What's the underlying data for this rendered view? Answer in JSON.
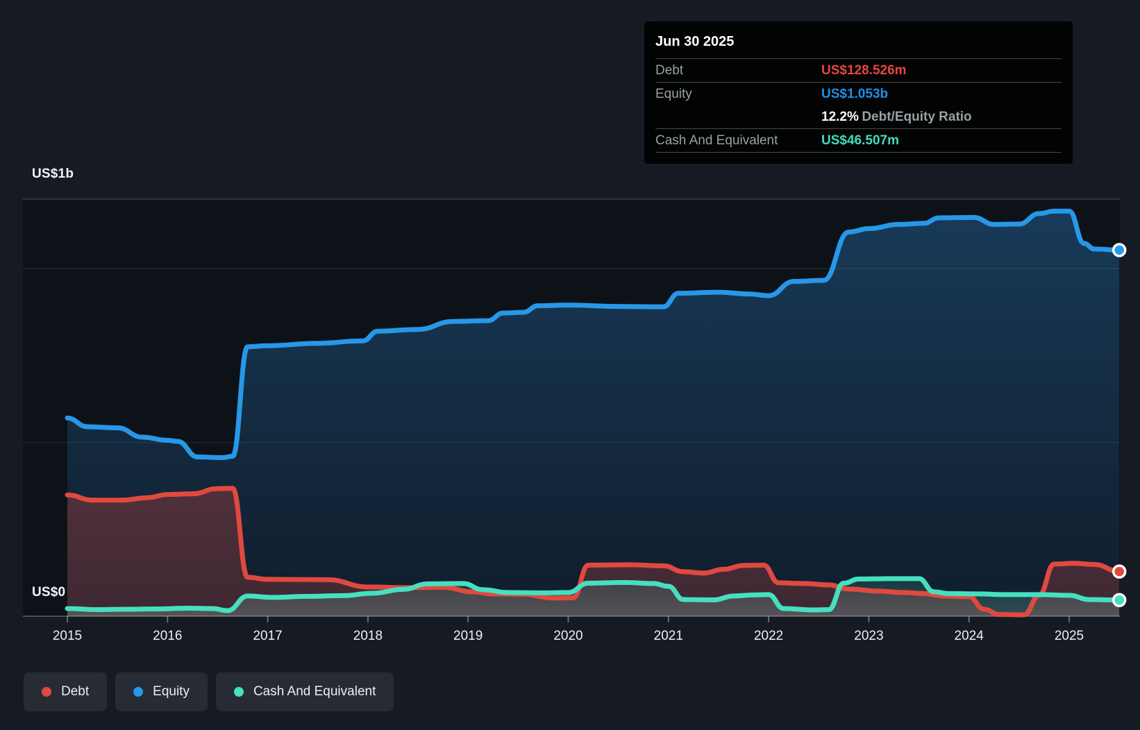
{
  "y_axis": {
    "top_label": "US$1b",
    "zero_label": "US$0"
  },
  "x_axis": {
    "ticks": [
      "2015",
      "2016",
      "2017",
      "2018",
      "2019",
      "2020",
      "2021",
      "2022",
      "2023",
      "2024",
      "2025"
    ]
  },
  "tooltip": {
    "date": "Jun 30 2025",
    "debt_label": "Debt",
    "debt_value": "US$128.526m",
    "equity_label": "Equity",
    "equity_value": "US$1.053b",
    "ratio_value": "12.2%",
    "ratio_label": "Debt/Equity Ratio",
    "cash_label": "Cash And Equivalent",
    "cash_value": "US$46.507m"
  },
  "legend": {
    "debt": "Debt",
    "equity": "Equity",
    "cash": "Cash And Equivalent"
  },
  "colors": {
    "debt": "#e0493f",
    "equity": "#2797e8",
    "cash": "#46e0c1",
    "debt_value_text": "#e64540",
    "equity_value_text": "#1e8fe3",
    "cash_value_text": "#41dcbd",
    "plot_bg": "#0d1219",
    "page_bg": "#151a23",
    "grid": "rgba(255,255,255,0.08)",
    "plot_top_border": "rgba(255,255,255,0.18)",
    "axis": "rgba(255,255,255,0.25)"
  },
  "chart_data": {
    "type": "area",
    "title": "Debt to Equity History with Cash And Equivalents",
    "x_unit": "year",
    "x_range": [
      2015.0,
      2025.5
    ],
    "y_unit": "USD millions",
    "y_range": [
      0,
      1200
    ],
    "gridline_values_usd_m": [
      0,
      500,
      1000
    ],
    "y_tick_labels": [
      "US$0",
      "US$1b"
    ],
    "x_tick_labels": [
      2015,
      2016,
      2017,
      2018,
      2019,
      2020,
      2021,
      2022,
      2023,
      2024,
      2025
    ],
    "legend_position": "bottom-left",
    "hover_point": {
      "date": "Jun 30 2025",
      "debt_usd_m": 128.526,
      "equity_usd_m": 1053,
      "debt_equity_ratio_pct": 12.2,
      "cash_usd_m": 46.507
    },
    "series": [
      {
        "name": "Equity",
        "color": "#2797e8",
        "points": [
          [
            2015.0,
            570
          ],
          [
            2015.2,
            545
          ],
          [
            2015.5,
            542
          ],
          [
            2015.75,
            515
          ],
          [
            2016.0,
            506
          ],
          [
            2016.1,
            503
          ],
          [
            2016.3,
            458
          ],
          [
            2016.55,
            456
          ],
          [
            2016.65,
            460
          ],
          [
            2016.8,
            775
          ],
          [
            2017.0,
            778
          ],
          [
            2017.5,
            785
          ],
          [
            2017.95,
            792
          ],
          [
            2018.1,
            820
          ],
          [
            2018.5,
            825
          ],
          [
            2018.85,
            848
          ],
          [
            2019.2,
            850
          ],
          [
            2019.35,
            872
          ],
          [
            2019.55,
            874
          ],
          [
            2019.7,
            893
          ],
          [
            2020.0,
            895
          ],
          [
            2020.5,
            891
          ],
          [
            2020.95,
            890
          ],
          [
            2021.1,
            929
          ],
          [
            2021.5,
            932
          ],
          [
            2021.8,
            927
          ],
          [
            2022.0,
            922
          ],
          [
            2022.25,
            963
          ],
          [
            2022.55,
            966
          ],
          [
            2022.8,
            1105
          ],
          [
            2023.0,
            1115
          ],
          [
            2023.3,
            1127
          ],
          [
            2023.55,
            1130
          ],
          [
            2023.7,
            1146
          ],
          [
            2024.05,
            1147
          ],
          [
            2024.25,
            1127
          ],
          [
            2024.5,
            1128
          ],
          [
            2024.7,
            1158
          ],
          [
            2024.85,
            1165
          ],
          [
            2025.0,
            1165
          ],
          [
            2025.15,
            1072
          ],
          [
            2025.25,
            1056
          ],
          [
            2025.5,
            1053
          ]
        ]
      },
      {
        "name": "Debt",
        "color": "#e0493f",
        "points": [
          [
            2015.0,
            349
          ],
          [
            2015.25,
            334
          ],
          [
            2015.55,
            334
          ],
          [
            2015.8,
            341
          ],
          [
            2016.0,
            350
          ],
          [
            2016.25,
            352
          ],
          [
            2016.5,
            367
          ],
          [
            2016.65,
            368
          ],
          [
            2016.8,
            112
          ],
          [
            2017.0,
            106
          ],
          [
            2017.6,
            105
          ],
          [
            2018.0,
            84
          ],
          [
            2018.4,
            82
          ],
          [
            2018.75,
            83
          ],
          [
            2019.05,
            70
          ],
          [
            2019.25,
            64
          ],
          [
            2019.55,
            63
          ],
          [
            2019.85,
            52
          ],
          [
            2020.05,
            53
          ],
          [
            2020.2,
            147
          ],
          [
            2020.6,
            148
          ],
          [
            2020.95,
            145
          ],
          [
            2021.15,
            128
          ],
          [
            2021.35,
            124
          ],
          [
            2021.55,
            135
          ],
          [
            2021.75,
            146
          ],
          [
            2021.95,
            147
          ],
          [
            2022.1,
            96
          ],
          [
            2022.35,
            94
          ],
          [
            2022.6,
            90
          ],
          [
            2022.8,
            78
          ],
          [
            2023.1,
            72
          ],
          [
            2023.35,
            68
          ],
          [
            2023.55,
            65
          ],
          [
            2023.75,
            58
          ],
          [
            2024.0,
            56
          ],
          [
            2024.15,
            20
          ],
          [
            2024.3,
            5
          ],
          [
            2024.55,
            4
          ],
          [
            2024.7,
            60
          ],
          [
            2024.85,
            150
          ],
          [
            2025.05,
            152
          ],
          [
            2025.25,
            149
          ],
          [
            2025.5,
            128.526
          ]
        ]
      },
      {
        "name": "Cash And Equivalent",
        "color": "#46e0c1",
        "points": [
          [
            2015.0,
            22
          ],
          [
            2015.3,
            19
          ],
          [
            2015.6,
            20
          ],
          [
            2015.9,
            21
          ],
          [
            2016.2,
            23
          ],
          [
            2016.45,
            22
          ],
          [
            2016.6,
            16
          ],
          [
            2016.8,
            58
          ],
          [
            2017.05,
            54
          ],
          [
            2017.4,
            57
          ],
          [
            2017.75,
            59
          ],
          [
            2018.05,
            66
          ],
          [
            2018.35,
            77
          ],
          [
            2018.6,
            93
          ],
          [
            2018.95,
            94
          ],
          [
            2019.15,
            76
          ],
          [
            2019.4,
            68
          ],
          [
            2019.75,
            67
          ],
          [
            2020.0,
            68
          ],
          [
            2020.2,
            95
          ],
          [
            2020.55,
            97
          ],
          [
            2020.85,
            94
          ],
          [
            2021.0,
            86
          ],
          [
            2021.15,
            48
          ],
          [
            2021.45,
            47
          ],
          [
            2021.65,
            58
          ],
          [
            2021.85,
            61
          ],
          [
            2022.0,
            62
          ],
          [
            2022.15,
            22
          ],
          [
            2022.45,
            18
          ],
          [
            2022.6,
            19
          ],
          [
            2022.75,
            95
          ],
          [
            2022.9,
            107
          ],
          [
            2023.2,
            108
          ],
          [
            2023.5,
            108
          ],
          [
            2023.65,
            70
          ],
          [
            2023.8,
            65
          ],
          [
            2024.1,
            64
          ],
          [
            2024.35,
            62
          ],
          [
            2024.7,
            62
          ],
          [
            2025.0,
            60
          ],
          [
            2025.2,
            48
          ],
          [
            2025.5,
            46.507
          ]
        ]
      }
    ]
  }
}
